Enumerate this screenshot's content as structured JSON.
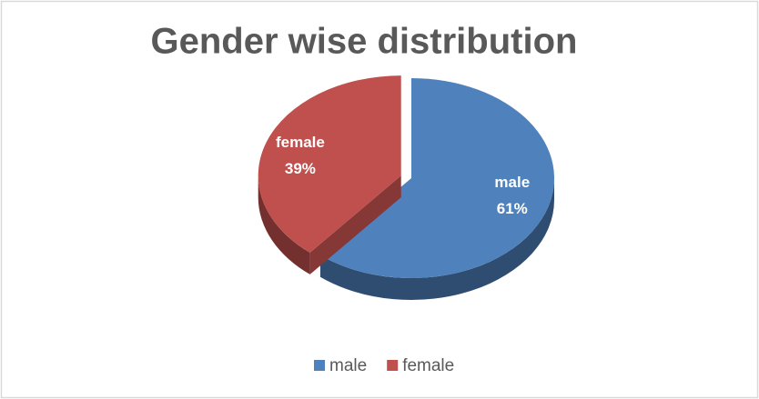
{
  "chart_data": {
    "type": "pie",
    "title": "Gender wise distribution",
    "categories": [
      "male",
      "female"
    ],
    "values": [
      61,
      39
    ],
    "value_labels": [
      "61%",
      "39%"
    ],
    "colors": [
      "#4f81bd",
      "#c0504d"
    ],
    "legend": "bottom"
  }
}
